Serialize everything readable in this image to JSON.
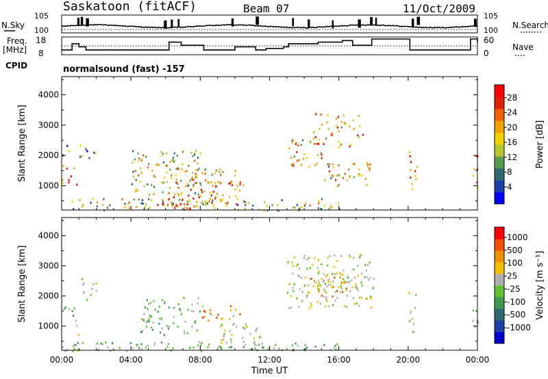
{
  "header": {
    "station": "Saskatoon (fitACF)",
    "beam": "Beam 07",
    "date": "11/Oct/2009"
  },
  "left_labels": {
    "nsky": "N.Sky",
    "freq_line1": "Freq.",
    "freq_line2": "[MHz]",
    "cpid": "CPID"
  },
  "right_labels": {
    "nsearch": "N.Search",
    "nave": "Nave"
  },
  "cpid_text": "normalsound (fast) -157",
  "chart_data": [
    {
      "type": "line",
      "panel": "noise",
      "series": [
        {
          "name": "N.Sky",
          "style": "solid"
        },
        {
          "name": "N.Search",
          "style": "dotted"
        }
      ],
      "ylim_label": [
        "10^0",
        "10^5"
      ],
      "left_ticks": [
        "10^5",
        "10^0"
      ],
      "right_ticks": [
        "10^5",
        "10^0"
      ],
      "spikes_at_hours": [
        0.9,
        1.1,
        1.4,
        5.9,
        6.3,
        6.7,
        9.8,
        11.2,
        13.3,
        14.2,
        15.6,
        17.1,
        17.8,
        18.1,
        20.2,
        20.5,
        23.8
      ]
    },
    {
      "type": "line",
      "panel": "frequency_nave",
      "left_ticks": [
        "18",
        "8"
      ],
      "right_ticks": [
        "60",
        "0"
      ],
      "x": [
        0,
        0.6,
        1.0,
        1.4,
        4.3,
        6.2,
        6.9,
        8.2,
        10.0,
        11.2,
        11.8,
        12.8,
        13.1,
        14.8,
        16.2,
        16.8,
        17.9,
        19.8,
        20.1,
        23.6,
        24
      ],
      "freq_MHz": [
        11,
        15,
        13,
        11,
        11,
        16,
        14,
        11,
        13,
        11,
        12,
        13,
        15,
        16,
        17,
        14,
        18,
        18,
        11,
        18,
        16
      ],
      "nave_ref": 30
    },
    {
      "type": "heatmap",
      "panel": "power",
      "xlabel": "",
      "ylabel": "Slant Range [km]",
      "xlim_hours": [
        0,
        24
      ],
      "ylim": [
        200,
        4600
      ],
      "yticks": [
        1000,
        2000,
        3000,
        4000
      ],
      "colorbar": {
        "label": "Power [dB]",
        "ticks": [
          4,
          8,
          12,
          16,
          20,
          24,
          28
        ],
        "colors": [
          "#0000ff",
          "#1f3fa8",
          "#2e6b70",
          "#5a9a50",
          "#b8c830",
          "#f0d000",
          "#f0a000",
          "#f06000",
          "#e02000",
          "#ff0000"
        ]
      },
      "echo_regions": [
        {
          "t": [
            0.0,
            0.9
          ],
          "r": [
            1000,
            1700
          ],
          "level": 0.8
        },
        {
          "t": [
            0.0,
            0.5
          ],
          "r": [
            400,
            900
          ],
          "level": 0.85
        },
        {
          "t": [
            0.0,
            0.4
          ],
          "r": [
            2000,
            2400
          ],
          "level": 0.3
        },
        {
          "t": [
            1.0,
            2.0
          ],
          "r": [
            1900,
            2500
          ],
          "level": 0.35
        },
        {
          "t": [
            0.5,
            16.0
          ],
          "r": [
            200,
            600
          ],
          "level": 0.45
        },
        {
          "t": [
            4.0,
            8.0
          ],
          "r": [
            700,
            2200
          ],
          "level": 0.5
        },
        {
          "t": [
            5.5,
            8.0
          ],
          "r": [
            250,
            800
          ],
          "level": 0.9
        },
        {
          "t": [
            6.5,
            10.0
          ],
          "r": [
            900,
            1600
          ],
          "level": 0.6
        },
        {
          "t": [
            8.0,
            10.5
          ],
          "r": [
            400,
            1200
          ],
          "level": 0.7
        },
        {
          "t": [
            13.0,
            15.0
          ],
          "r": [
            1600,
            2600
          ],
          "level": 0.55
        },
        {
          "t": [
            14.5,
            17.5
          ],
          "r": [
            2300,
            3400
          ],
          "level": 0.65
        },
        {
          "t": [
            15.0,
            17.8
          ],
          "r": [
            1000,
            1800
          ],
          "level": 0.55
        },
        {
          "t": [
            20.0,
            20.5
          ],
          "r": [
            800,
            2200
          ],
          "level": 0.7
        },
        {
          "t": [
            23.7,
            24.0
          ],
          "r": [
            900,
            2400
          ],
          "level": 0.85
        }
      ]
    },
    {
      "type": "heatmap",
      "panel": "velocity",
      "xlabel": "Time UT",
      "ylabel": "Slant Range [km]",
      "xlim_hours": [
        0,
        24
      ],
      "ylim": [
        200,
        4600
      ],
      "yticks": [
        1000,
        2000,
        3000,
        4000
      ],
      "xticks": [
        "00:00",
        "04:00",
        "08:00",
        "12:00",
        "16:00",
        "20:00",
        "00:00"
      ],
      "colorbar": {
        "label": "Velocity [m s⁻¹]",
        "ticks": [
          "1000",
          "500",
          "100",
          "25",
          "-25",
          "-100",
          "-500",
          "-1000"
        ],
        "colors": [
          "#0000cc",
          "#1f3fa8",
          "#2e6b70",
          "#3f9a50",
          "#60c030",
          "#b0b0b0",
          "#f0c000",
          "#f09000",
          "#f05000",
          "#ff0000"
        ]
      },
      "echo_regions": [
        {
          "t": [
            0.0,
            0.9
          ],
          "r": [
            1000,
            1700
          ],
          "v": "green"
        },
        {
          "t": [
            0.0,
            1.0
          ],
          "r": [
            200,
            900
          ],
          "v": "grey"
        },
        {
          "t": [
            1.0,
            2.0
          ],
          "r": [
            1900,
            2600
          ],
          "v": "grey"
        },
        {
          "t": [
            0.5,
            16.0
          ],
          "r": [
            200,
            500
          ],
          "v": "green"
        },
        {
          "t": [
            4.5,
            8.0
          ],
          "r": [
            700,
            2000
          ],
          "v": "green"
        },
        {
          "t": [
            8.0,
            10.5
          ],
          "r": [
            1200,
            1700
          ],
          "v": "orange"
        },
        {
          "t": [
            9.0,
            11.5
          ],
          "r": [
            300,
            1200
          ],
          "v": "grey"
        },
        {
          "t": [
            13.0,
            18.0
          ],
          "r": [
            1600,
            3400
          ],
          "v": "grey"
        },
        {
          "t": [
            14.0,
            16.5
          ],
          "r": [
            2000,
            2800
          ],
          "v": "orange"
        },
        {
          "t": [
            20.0,
            20.5
          ],
          "r": [
            800,
            2200
          ],
          "v": "grey"
        },
        {
          "t": [
            23.7,
            24.0
          ],
          "r": [
            900,
            2000
          ],
          "v": "green"
        }
      ]
    }
  ]
}
